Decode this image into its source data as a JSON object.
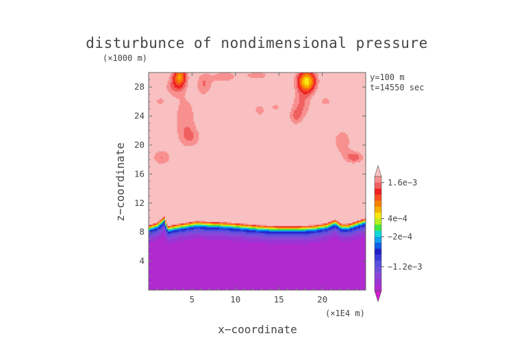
{
  "chart_data": {
    "type": "heatmap",
    "title": "disturbunce of nondimensional pressure",
    "yunit": "(×1000 m)",
    "xunit": "(×1E4 m)",
    "xlabel": "x−coordinate",
    "ylabel": "z−coordinate",
    "annotations": [
      "y=100 m",
      "t=14550 sec"
    ],
    "x_range": [
      0,
      25
    ],
    "y_range": [
      0,
      30
    ],
    "x_ticks": [
      5,
      10,
      15,
      20
    ],
    "y_ticks": [
      4,
      8,
      12,
      16,
      20,
      24,
      28
    ],
    "x_tick_labels": [
      "5",
      "10",
      "15",
      "20"
    ],
    "y_tick_labels": [
      "4",
      "8",
      "12",
      "16",
      "20",
      "24",
      "28"
    ],
    "colorbar": {
      "labels": [
        "1.6e−3",
        "4e−4",
        "−2e−4",
        "−1.2e−3"
      ],
      "label_values": [
        0.0016,
        0.0004,
        -0.0002,
        -0.0012
      ],
      "levels": [
        -0.0022,
        -0.002,
        -0.0018,
        -0.0016,
        -0.0014,
        -0.0012,
        -0.001,
        -0.0008,
        -0.0006,
        -0.0004,
        -0.0002,
        0,
        0.0002,
        0.0004,
        0.0006,
        0.0008,
        0.001,
        0.0012,
        0.0014,
        0.0016,
        0.0018
      ],
      "colors": [
        "#cc1fcc",
        "#b02ad0",
        "#9a34d4",
        "#8a46d8",
        "#7050d8",
        "#5a50e0",
        "#3a3ad8",
        "#2020c8",
        "#1060e8",
        "#10a0f0",
        "#10d8d8",
        "#40e840",
        "#b8f020",
        "#f8e810",
        "#f8b000",
        "#f88000",
        "#f85020",
        "#f02020",
        "#f06060",
        "#f89090",
        "#f8c0c0"
      ]
    },
    "base_value": 0.0019,
    "fields": [
      {
        "x": 1.5,
        "z": 18.3,
        "sx": 1.2,
        "sz": 1.2,
        "amp": -0.0005
      },
      {
        "x": 4.2,
        "z": 24.0,
        "sx": 1.4,
        "sz": 3.2,
        "amp": -0.00045
      },
      {
        "x": 4.8,
        "z": 21.0,
        "sx": 1.4,
        "sz": 1.6,
        "amp": -0.0004
      },
      {
        "x": 3.6,
        "z": 29.5,
        "sx": 0.8,
        "sz": 1.5,
        "amp": -0.0012
      },
      {
        "x": 2.8,
        "z": 28.0,
        "sx": 1.2,
        "sz": 1.5,
        "amp": -0.0004
      },
      {
        "x": 6.4,
        "z": 28.4,
        "sx": 1.0,
        "sz": 1.8,
        "amp": -0.0005
      },
      {
        "x": 8.6,
        "z": 29.4,
        "sx": 1.4,
        "sz": 1.0,
        "amp": -0.0004
      },
      {
        "x": 12.5,
        "z": 29.6,
        "sx": 2.6,
        "sz": 1.0,
        "amp": -0.00035
      },
      {
        "x": 12.8,
        "z": 24.8,
        "sx": 0.6,
        "sz": 0.8,
        "amp": -0.0005
      },
      {
        "x": 14.6,
        "z": 25.2,
        "sx": 0.6,
        "sz": 0.6,
        "amp": -0.0004
      },
      {
        "x": 18.2,
        "z": 28.8,
        "sx": 1.1,
        "sz": 1.6,
        "amp": -0.0016
      },
      {
        "x": 17.6,
        "z": 25.5,
        "sx": 1.2,
        "sz": 2.0,
        "amp": -0.0005
      },
      {
        "x": 16.9,
        "z": 23.8,
        "sx": 0.8,
        "sz": 1.2,
        "amp": -0.0004
      },
      {
        "x": 20.4,
        "z": 26.0,
        "sx": 0.8,
        "sz": 0.7,
        "amp": -0.0004
      },
      {
        "x": 22.3,
        "z": 20.5,
        "sx": 1.2,
        "sz": 2.0,
        "amp": -0.00045
      },
      {
        "x": 23.7,
        "z": 18.3,
        "sx": 1.2,
        "sz": 0.9,
        "amp": -0.0006
      },
      {
        "x": 1.3,
        "z": 26.0,
        "sx": 0.6,
        "sz": 0.6,
        "amp": -0.0004
      },
      {
        "x": 11.8,
        "z": 15.0,
        "sx": 1.2,
        "sz": 0.3,
        "amp": -0.0003
      }
    ],
    "boundary_x": [
      0,
      1.0,
      1.8,
      2.2,
      3.0,
      4.0,
      5.5,
      7.0,
      9.0,
      11.0,
      13.0,
      15.0,
      17.0,
      19.0,
      20.5,
      21.5,
      22.2,
      23.0,
      24.0,
      25.0
    ],
    "boundary_z": [
      9.0,
      9.4,
      10.2,
      8.9,
      9.1,
      9.3,
      9.6,
      9.5,
      9.4,
      9.2,
      9.0,
      8.9,
      8.9,
      9.0,
      9.3,
      9.8,
      9.2,
      9.2,
      9.6,
      10.0
    ]
  }
}
